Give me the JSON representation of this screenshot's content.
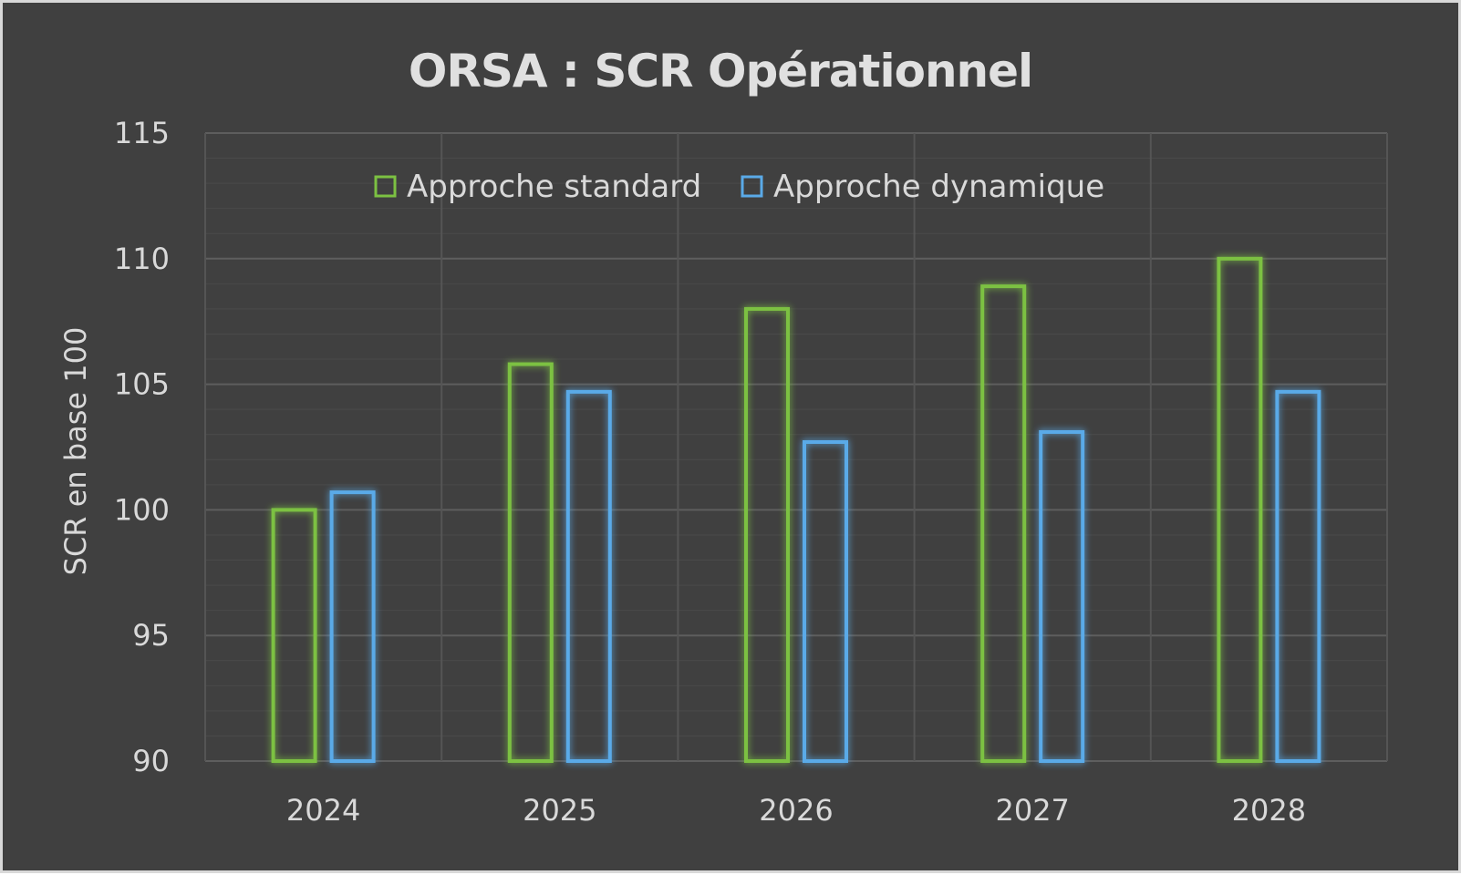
{
  "chart_data": {
    "type": "bar",
    "title": "ORSA : SCR Opérationnel",
    "xlabel": "",
    "ylabel": "SCR en base 100",
    "categories": [
      "2024",
      "2025",
      "2026",
      "2027",
      "2028"
    ],
    "series": [
      {
        "name": "Approche standard",
        "color": "#7cc142",
        "values": [
          100,
          105.8,
          108,
          108.9,
          110
        ]
      },
      {
        "name": "Approche dynamique",
        "color": "#5aaae8",
        "values": [
          100.7,
          104.7,
          102.7,
          103.1,
          104.7
        ]
      }
    ],
    "ylim": [
      90,
      115
    ],
    "yticks": [
      90,
      95,
      100,
      105,
      110,
      115
    ],
    "grid": true,
    "legend_position": "top"
  }
}
